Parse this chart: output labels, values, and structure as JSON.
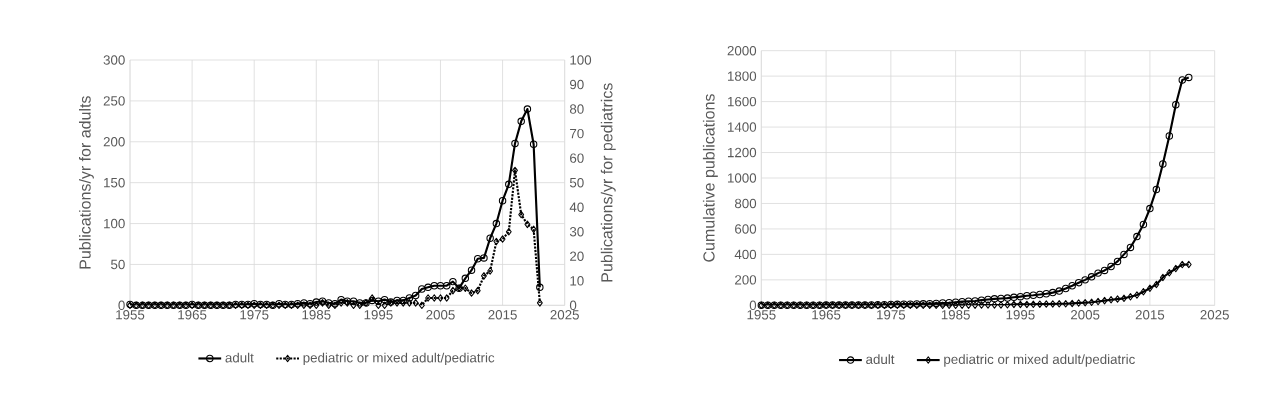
{
  "chart_data": [
    {
      "type": "line",
      "x": [
        1955,
        1956,
        1957,
        1958,
        1959,
        1960,
        1961,
        1962,
        1963,
        1964,
        1965,
        1966,
        1967,
        1968,
        1969,
        1970,
        1971,
        1972,
        1973,
        1974,
        1975,
        1976,
        1977,
        1978,
        1979,
        1980,
        1981,
        1982,
        1983,
        1984,
        1985,
        1986,
        1987,
        1988,
        1989,
        1990,
        1991,
        1992,
        1993,
        1994,
        1995,
        1996,
        1997,
        1998,
        1999,
        2000,
        2001,
        2002,
        2003,
        2004,
        2005,
        2006,
        2007,
        2008,
        2009,
        2010,
        2011,
        2012,
        2013,
        2014,
        2015,
        2016,
        2017,
        2018,
        2019,
        2020,
        2021
      ],
      "series": [
        {
          "name": "adult",
          "color": "#000000",
          "marker": "circle",
          "line_style": "solid",
          "values": [
            1,
            0,
            0,
            0,
            0,
            0,
            0,
            0,
            0,
            0,
            1,
            0,
            0,
            0,
            0,
            0,
            0,
            1,
            1,
            1,
            2,
            1,
            1,
            0,
            2,
            1,
            1,
            2,
            3,
            2,
            4,
            5,
            3,
            2,
            7,
            5,
            5,
            3,
            3,
            6,
            5,
            7,
            4,
            6,
            6,
            9,
            12,
            20,
            22,
            24,
            24,
            24,
            29,
            21,
            33,
            43,
            57,
            58,
            82,
            100,
            128,
            148,
            198,
            225,
            240,
            197,
            22
          ]
        },
        {
          "name": "pediatric or mixed adult/pediatric",
          "color": "#000000",
          "marker": "diamond",
          "line_style": "dotted",
          "axis": "y2",
          "values": [
            0,
            0,
            0,
            0,
            0,
            0,
            0,
            0,
            0,
            0,
            0,
            0,
            0,
            0,
            0,
            0,
            0,
            0,
            0,
            0,
            0,
            0,
            0,
            0,
            0,
            0,
            0,
            0,
            0,
            0,
            0,
            1,
            0,
            0,
            1,
            1,
            0,
            0,
            1,
            3,
            0,
            0,
            1,
            1,
            1,
            1,
            1,
            0,
            3,
            3,
            3,
            3,
            6,
            7,
            7,
            5,
            6,
            12,
            14,
            26,
            27,
            30,
            55,
            37,
            33,
            31,
            1
          ]
        }
      ],
      "xlim": [
        1955,
        2025
      ],
      "xticks": [
        1955,
        1965,
        1975,
        1985,
        1995,
        2005,
        2015,
        2025
      ],
      "ylim": [
        0,
        300
      ],
      "yticks": [
        0,
        50,
        100,
        150,
        200,
        250,
        300
      ],
      "y2lim": [
        0,
        100
      ],
      "y2ticks": [
        0,
        10,
        20,
        30,
        40,
        50,
        60,
        70,
        80,
        90,
        100
      ],
      "ylabel": "Publications/yr for adults",
      "y2label": "Publications/yr for pediatrics",
      "grid": true,
      "legend": "bottom"
    },
    {
      "type": "line",
      "x": [
        1955,
        1956,
        1957,
        1958,
        1959,
        1960,
        1961,
        1962,
        1963,
        1964,
        1965,
        1966,
        1967,
        1968,
        1969,
        1970,
        1971,
        1972,
        1973,
        1974,
        1975,
        1976,
        1977,
        1978,
        1979,
        1980,
        1981,
        1982,
        1983,
        1984,
        1985,
        1986,
        1987,
        1988,
        1989,
        1990,
        1991,
        1992,
        1993,
        1994,
        1995,
        1996,
        1997,
        1998,
        1999,
        2000,
        2001,
        2002,
        2003,
        2004,
        2005,
        2006,
        2007,
        2008,
        2009,
        2010,
        2011,
        2012,
        2013,
        2014,
        2015,
        2016,
        2017,
        2018,
        2019,
        2020,
        2021
      ],
      "series": [
        {
          "name": "adult",
          "color": "#000000",
          "marker": "circle",
          "line_style": "solid",
          "values": [
            1,
            1,
            1,
            1,
            1,
            1,
            1,
            1,
            1,
            1,
            2,
            2,
            2,
            2,
            2,
            2,
            2,
            3,
            4,
            5,
            7,
            8,
            9,
            9,
            11,
            12,
            13,
            15,
            18,
            20,
            24,
            29,
            32,
            34,
            41,
            46,
            51,
            54,
            57,
            63,
            68,
            75,
            79,
            85,
            91,
            100,
            112,
            132,
            154,
            178,
            200,
            224,
            253,
            274,
            305,
            345,
            400,
            455,
            540,
            635,
            760,
            910,
            1110,
            1330,
            1575,
            1770,
            1790
          ]
        },
        {
          "name": "pediatric or mixed adult/pediatric",
          "color": "#000000",
          "marker": "diamond",
          "line_style": "solid",
          "values": [
            0,
            0,
            0,
            0,
            0,
            0,
            0,
            0,
            0,
            0,
            0,
            0,
            0,
            0,
            0,
            0,
            0,
            0,
            0,
            0,
            0,
            0,
            0,
            0,
            0,
            0,
            0,
            0,
            0,
            0,
            0,
            1,
            1,
            1,
            2,
            3,
            3,
            3,
            4,
            7,
            7,
            7,
            8,
            9,
            10,
            11,
            12,
            12,
            15,
            18,
            21,
            24,
            30,
            37,
            44,
            49,
            55,
            67,
            81,
            107,
            134,
            164,
            219,
            256,
            289,
            320,
            321
          ]
        }
      ],
      "xlim": [
        1955,
        2025
      ],
      "xticks": [
        1955,
        1965,
        1975,
        1985,
        1995,
        2005,
        2015,
        2025
      ],
      "ylim": [
        0,
        2000
      ],
      "yticks": [
        0,
        200,
        400,
        600,
        800,
        1000,
        1200,
        1400,
        1600,
        1800,
        2000
      ],
      "ylabel": "Cumulative publications",
      "grid": true,
      "legend": "bottom"
    }
  ]
}
